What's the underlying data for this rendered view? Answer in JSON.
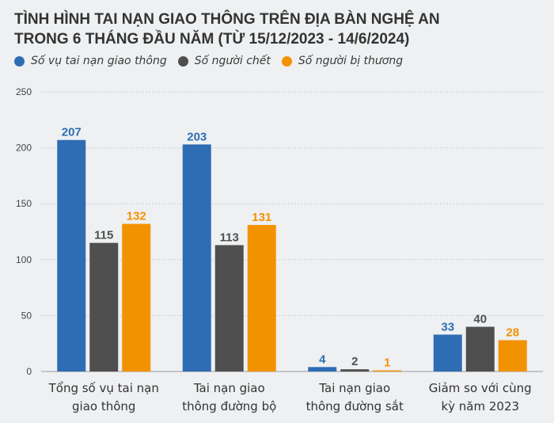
{
  "title": {
    "line1": "TÌNH HÌNH TAI NẠN GIAO THÔNG TRÊN ĐỊA BÀN NGHỆ AN",
    "line2": "TRONG 6 THÁNG ĐẦU NĂM (TỪ 15/12/2023 - 14/6/2024)"
  },
  "legend": [
    {
      "label": "Số vụ tai nạn giao thông",
      "color": "#2e6db4"
    },
    {
      "label": "Số người chết",
      "color": "#4f4f4f"
    },
    {
      "label": "Số người bị thương",
      "color": "#f39200"
    }
  ],
  "chart_data": {
    "type": "bar",
    "categories": [
      [
        "Tổng số vụ tai nạn",
        "giao thông"
      ],
      [
        "Tai nạn giao",
        "thông đường bộ"
      ],
      [
        "Tai nạn giao",
        "thông đường sắt"
      ],
      [
        "Giảm so với cùng",
        "kỳ năm 2023"
      ]
    ],
    "series": [
      {
        "name": "Số vụ tai nạn giao thông",
        "color": "#2e6db4",
        "values": [
          207,
          203,
          4,
          33
        ]
      },
      {
        "name": "Số người chết",
        "color": "#4f4f4f",
        "values": [
          115,
          113,
          2,
          40
        ]
      },
      {
        "name": "Số người bị thương",
        "color": "#f39200",
        "values": [
          132,
          131,
          1,
          28
        ]
      }
    ],
    "ylim": [
      0,
      250
    ],
    "yticks": [
      0,
      50,
      100,
      150,
      200,
      250
    ],
    "grid": true,
    "legend_position": "top-left"
  }
}
